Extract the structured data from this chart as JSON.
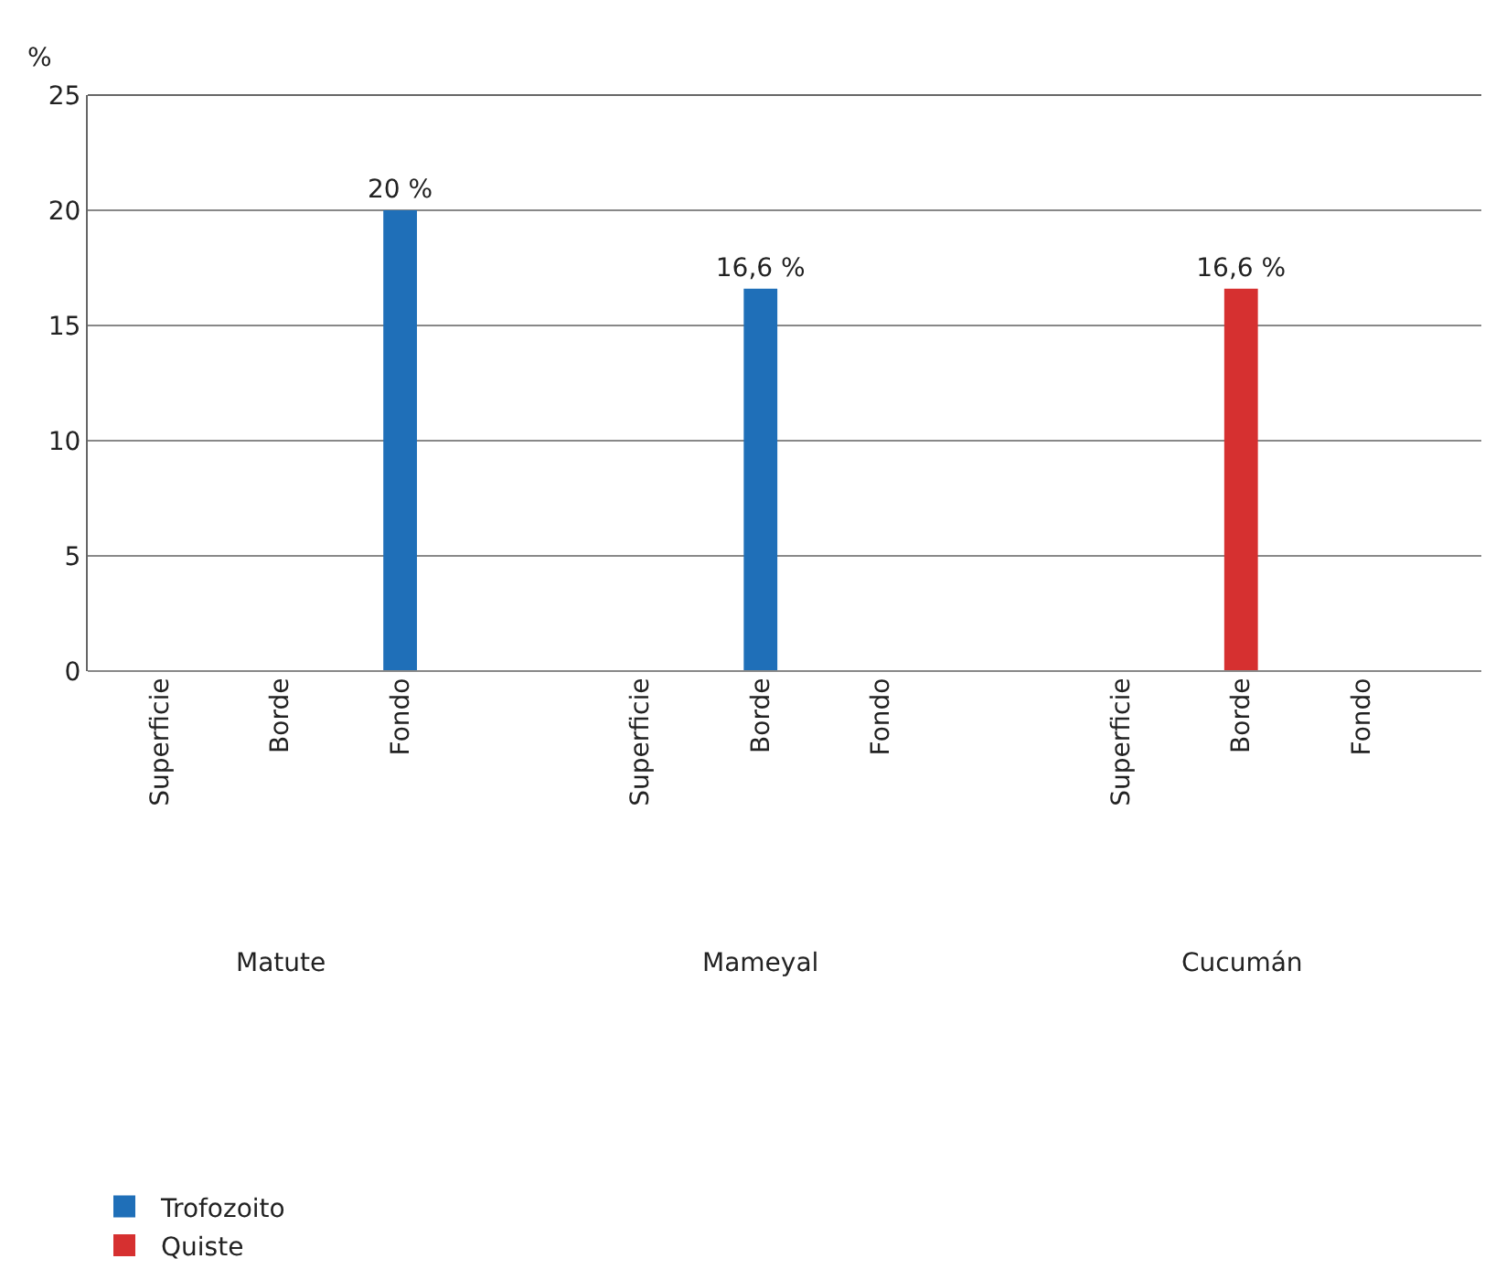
{
  "chart_data": {
    "type": "bar",
    "ylabel": "%",
    "categories": [
      "Superficie",
      "Borde",
      "Fondo",
      "Superficie",
      "Borde",
      "Fondo",
      "Superficie",
      "Borde",
      "Fondo"
    ],
    "series": [
      {
        "name": "Trofozoito",
        "color": "#1f6fb8",
        "values": [
          null,
          null,
          20,
          null,
          16.6,
          null,
          null,
          null,
          null
        ],
        "value_labels": [
          null,
          null,
          "20 %",
          null,
          "16,6 %",
          null,
          null,
          null,
          null
        ]
      },
      {
        "name": "Quiste",
        "color": "#d63030",
        "values": [
          null,
          null,
          null,
          null,
          null,
          null,
          null,
          16.6,
          null
        ],
        "value_labels": [
          null,
          null,
          null,
          null,
          null,
          null,
          null,
          "16,6 %",
          null
        ]
      }
    ],
    "annotations": [
      "Matute",
      "Mameyal",
      "Cucumán"
    ],
    "ylim": [
      0,
      25
    ],
    "yticks": [
      0,
      5,
      10,
      15,
      20,
      25
    ],
    "grid": "y",
    "legend": "bottom left"
  }
}
